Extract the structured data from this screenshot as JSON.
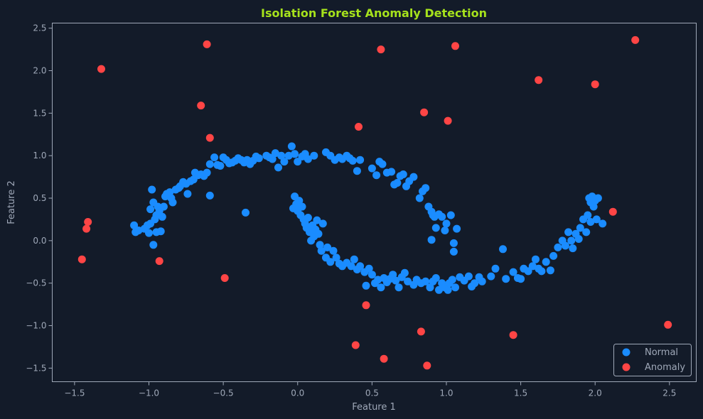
{
  "colors": {
    "background": "#131b29",
    "axes_frame": "#9fa8b8",
    "text": "#9fa8b8",
    "title": "#a6e21c",
    "normal": "#1a8cff",
    "anomaly": "#ff4545"
  },
  "chart_data": {
    "type": "scatter",
    "title": "Isolation Forest Anomaly Detection",
    "xlabel": "Feature 1",
    "ylabel": "Feature 2",
    "xlim": [
      -1.65,
      2.68
    ],
    "ylim": [
      -1.66,
      2.56
    ],
    "xticks": [
      -1.5,
      -1.0,
      -0.5,
      0.0,
      0.5,
      1.0,
      1.5,
      2.0,
      2.5
    ],
    "xtick_labels": [
      "−1.5",
      "−1.0",
      "−0.5",
      "0.0",
      "0.5",
      "1.0",
      "1.5",
      "2.0",
      "2.5"
    ],
    "yticks": [
      -1.5,
      -1.0,
      -0.5,
      0.0,
      0.5,
      1.0,
      1.5,
      2.0,
      2.5
    ],
    "ytick_labels": [
      "−1.5",
      "−1.0",
      "−0.5",
      "0.0",
      "0.5",
      "1.0",
      "1.5",
      "2.0",
      "2.5"
    ],
    "grid": false,
    "legend": {
      "position": "lower-right"
    },
    "series": [
      {
        "name": "Normal",
        "color": "#1a8cff",
        "points": [
          [
            -1.1,
            0.18
          ],
          [
            -1.09,
            0.1
          ],
          [
            -1.07,
            0.12
          ],
          [
            -1.03,
            0.14
          ],
          [
            -1.01,
            0.18
          ],
          [
            -1.0,
            0.09
          ],
          [
            -0.99,
            0.2
          ],
          [
            -0.98,
            0.6
          ],
          [
            -0.99,
            0.37
          ],
          [
            -0.97,
            0.45
          ],
          [
            -0.97,
            -0.05
          ],
          [
            -0.96,
            0.25
          ],
          [
            -0.95,
            0.3
          ],
          [
            -0.94,
            0.4
          ],
          [
            -0.95,
            0.1
          ],
          [
            -0.93,
            0.35
          ],
          [
            -0.92,
            0.11
          ],
          [
            -0.91,
            0.28
          ],
          [
            -0.9,
            0.4
          ],
          [
            -0.89,
            0.52
          ],
          [
            -0.88,
            0.55
          ],
          [
            -0.86,
            0.57
          ],
          [
            -0.85,
            0.5
          ],
          [
            -0.84,
            0.45
          ],
          [
            -0.82,
            0.6
          ],
          [
            -0.8,
            0.62
          ],
          [
            -0.79,
            0.64
          ],
          [
            -0.77,
            0.69
          ],
          [
            -0.75,
            0.67
          ],
          [
            -0.74,
            0.55
          ],
          [
            -0.72,
            0.7
          ],
          [
            -0.7,
            0.72
          ],
          [
            -0.69,
            0.8
          ],
          [
            -0.67,
            0.77
          ],
          [
            -0.65,
            0.78
          ],
          [
            -0.63,
            0.76
          ],
          [
            -0.61,
            0.8
          ],
          [
            -0.59,
            0.9
          ],
          [
            -0.59,
            0.53
          ],
          [
            -0.56,
            0.98
          ],
          [
            -0.54,
            0.89
          ],
          [
            -0.52,
            0.88
          ],
          [
            -0.5,
            0.98
          ],
          [
            -0.48,
            0.95
          ],
          [
            -0.46,
            0.91
          ],
          [
            -0.44,
            0.92
          ],
          [
            -0.42,
            0.94
          ],
          [
            -0.4,
            0.97
          ],
          [
            -0.38,
            0.95
          ],
          [
            -0.36,
            0.92
          ],
          [
            -0.35,
            0.33
          ],
          [
            -0.34,
            0.95
          ],
          [
            -0.32,
            0.9
          ],
          [
            -0.3,
            0.94
          ],
          [
            -0.28,
            0.99
          ],
          [
            -0.26,
            0.97
          ],
          [
            -0.21,
            1.0
          ],
          [
            -0.19,
            0.98
          ],
          [
            -0.17,
            0.96
          ],
          [
            -0.15,
            1.03
          ],
          [
            -0.13,
            0.86
          ],
          [
            -0.11,
            1.0
          ],
          [
            -0.09,
            0.93
          ],
          [
            -0.06,
            1.0
          ],
          [
            -0.04,
            1.11
          ],
          [
            -0.02,
            1.02
          ],
          [
            0.0,
            0.93
          ],
          [
            0.03,
            0.99
          ],
          [
            0.05,
            1.02
          ],
          [
            0.07,
            0.96
          ],
          [
            0.11,
            1.0
          ],
          [
            0.19,
            1.04
          ],
          [
            0.22,
            1.0
          ],
          [
            0.25,
            0.95
          ],
          [
            0.28,
            0.98
          ],
          [
            0.3,
            0.96
          ],
          [
            0.33,
            1.0
          ],
          [
            0.35,
            0.97
          ],
          [
            0.37,
            0.94
          ],
          [
            0.4,
            0.82
          ],
          [
            0.42,
            0.95
          ],
          [
            0.5,
            0.85
          ],
          [
            0.53,
            0.77
          ],
          [
            0.55,
            0.93
          ],
          [
            0.57,
            0.9
          ],
          [
            0.6,
            0.8
          ],
          [
            0.63,
            0.81
          ],
          [
            0.65,
            0.66
          ],
          [
            0.67,
            0.68
          ],
          [
            0.69,
            0.76
          ],
          [
            0.71,
            0.78
          ],
          [
            0.73,
            0.64
          ],
          [
            0.75,
            0.7
          ],
          [
            0.78,
            0.75
          ],
          [
            0.82,
            0.5
          ],
          [
            0.84,
            0.58
          ],
          [
            0.86,
            0.62
          ],
          [
            0.88,
            0.4
          ],
          [
            0.9,
            0.34
          ],
          [
            0.91,
            0.3
          ],
          [
            0.92,
            0.28
          ],
          [
            0.93,
            0.15
          ],
          [
            0.95,
            0.31
          ],
          [
            0.97,
            0.28
          ],
          [
            0.99,
            0.12
          ],
          [
            1.0,
            0.2
          ],
          [
            1.03,
            0.3
          ],
          [
            1.05,
            -0.03
          ],
          [
            1.05,
            -0.13
          ],
          [
            1.07,
            0.14
          ],
          [
            0.9,
            0.01
          ],
          [
            -0.03,
            0.38
          ],
          [
            -0.02,
            0.52
          ],
          [
            -0.01,
            0.43
          ],
          [
            0.0,
            0.35
          ],
          [
            0.01,
            0.47
          ],
          [
            0.02,
            0.3
          ],
          [
            0.03,
            0.4
          ],
          [
            0.04,
            0.25
          ],
          [
            0.05,
            0.2
          ],
          [
            0.06,
            0.15
          ],
          [
            0.07,
            0.27
          ],
          [
            0.08,
            0.1
          ],
          [
            0.09,
            0.0
          ],
          [
            0.1,
            0.18
          ],
          [
            0.11,
            0.05
          ],
          [
            0.12,
            0.13
          ],
          [
            0.13,
            0.24
          ],
          [
            0.14,
            0.08
          ],
          [
            0.15,
            -0.05
          ],
          [
            0.16,
            -0.12
          ],
          [
            0.17,
            0.2
          ],
          [
            0.19,
            -0.2
          ],
          [
            0.2,
            -0.08
          ],
          [
            0.22,
            -0.25
          ],
          [
            0.24,
            -0.12
          ],
          [
            0.26,
            -0.2
          ],
          [
            0.28,
            -0.27
          ],
          [
            0.3,
            -0.3
          ],
          [
            0.33,
            -0.26
          ],
          [
            0.36,
            -0.3
          ],
          [
            0.38,
            -0.22
          ],
          [
            0.4,
            -0.34
          ],
          [
            0.42,
            -0.3
          ],
          [
            0.45,
            -0.37
          ],
          [
            0.46,
            -0.53
          ],
          [
            0.48,
            -0.33
          ],
          [
            0.5,
            -0.4
          ],
          [
            0.52,
            -0.5
          ],
          [
            0.54,
            -0.46
          ],
          [
            0.56,
            -0.55
          ],
          [
            0.58,
            -0.44
          ],
          [
            0.6,
            -0.49
          ],
          [
            0.62,
            -0.45
          ],
          [
            0.64,
            -0.4
          ],
          [
            0.66,
            -0.47
          ],
          [
            0.68,
            -0.55
          ],
          [
            0.7,
            -0.43
          ],
          [
            0.72,
            -0.38
          ],
          [
            0.74,
            -0.48
          ],
          [
            0.78,
            -0.52
          ],
          [
            0.8,
            -0.46
          ],
          [
            0.83,
            -0.5
          ],
          [
            0.86,
            -0.48
          ],
          [
            0.89,
            -0.55
          ],
          [
            0.91,
            -0.48
          ],
          [
            0.93,
            -0.44
          ],
          [
            0.95,
            -0.58
          ],
          [
            0.97,
            -0.5
          ],
          [
            0.99,
            -0.55
          ],
          [
            1.01,
            -0.58
          ],
          [
            1.02,
            -0.5
          ],
          [
            1.04,
            -0.46
          ],
          [
            1.06,
            -0.55
          ],
          [
            1.09,
            -0.43
          ],
          [
            1.12,
            -0.47
          ],
          [
            1.15,
            -0.42
          ],
          [
            1.17,
            -0.54
          ],
          [
            1.19,
            -0.5
          ],
          [
            1.22,
            -0.43
          ],
          [
            1.24,
            -0.48
          ],
          [
            1.3,
            -0.42
          ],
          [
            1.33,
            -0.33
          ],
          [
            1.38,
            -0.1
          ],
          [
            1.4,
            -0.45
          ],
          [
            1.45,
            -0.37
          ],
          [
            1.48,
            -0.44
          ],
          [
            1.5,
            -0.45
          ],
          [
            1.52,
            -0.33
          ],
          [
            1.55,
            -0.36
          ],
          [
            1.58,
            -0.3
          ],
          [
            1.6,
            -0.22
          ],
          [
            1.62,
            -0.33
          ],
          [
            1.64,
            -0.36
          ],
          [
            1.67,
            -0.25
          ],
          [
            1.7,
            -0.35
          ],
          [
            1.72,
            -0.18
          ],
          [
            1.75,
            -0.08
          ],
          [
            1.78,
            0.0
          ],
          [
            1.8,
            -0.06
          ],
          [
            1.82,
            0.1
          ],
          [
            1.84,
            0.0
          ],
          [
            1.85,
            -0.09
          ],
          [
            1.87,
            0.08
          ],
          [
            1.89,
            0.02
          ],
          [
            1.9,
            0.15
          ],
          [
            1.92,
            0.25
          ],
          [
            1.94,
            0.1
          ],
          [
            1.95,
            0.3
          ],
          [
            1.96,
            0.5
          ],
          [
            1.97,
            0.45
          ],
          [
            1.98,
            0.52
          ],
          [
            1.99,
            0.4
          ],
          [
            2.0,
            0.47
          ],
          [
            2.01,
            0.25
          ],
          [
            2.02,
            0.5
          ],
          [
            2.05,
            0.2
          ],
          [
            1.97,
            0.22
          ]
        ]
      },
      {
        "name": "Anomaly",
        "color": "#ff4545",
        "points": [
          [
            -1.45,
            -0.22
          ],
          [
            -1.42,
            0.14
          ],
          [
            -1.41,
            0.22
          ],
          [
            -1.32,
            2.02
          ],
          [
            -0.93,
            -0.24
          ],
          [
            -0.65,
            1.59
          ],
          [
            -0.61,
            2.31
          ],
          [
            -0.59,
            1.21
          ],
          [
            -0.49,
            -0.44
          ],
          [
            0.39,
            -1.23
          ],
          [
            0.41,
            1.34
          ],
          [
            0.46,
            -0.76
          ],
          [
            0.56,
            2.25
          ],
          [
            0.58,
            -1.39
          ],
          [
            0.83,
            -1.07
          ],
          [
            0.85,
            1.51
          ],
          [
            0.87,
            -1.47
          ],
          [
            1.01,
            1.41
          ],
          [
            1.06,
            2.29
          ],
          [
            1.45,
            -1.11
          ],
          [
            1.62,
            1.89
          ],
          [
            2.0,
            1.84
          ],
          [
            2.12,
            0.34
          ],
          [
            2.27,
            2.36
          ],
          [
            2.49,
            -0.99
          ]
        ]
      }
    ]
  }
}
